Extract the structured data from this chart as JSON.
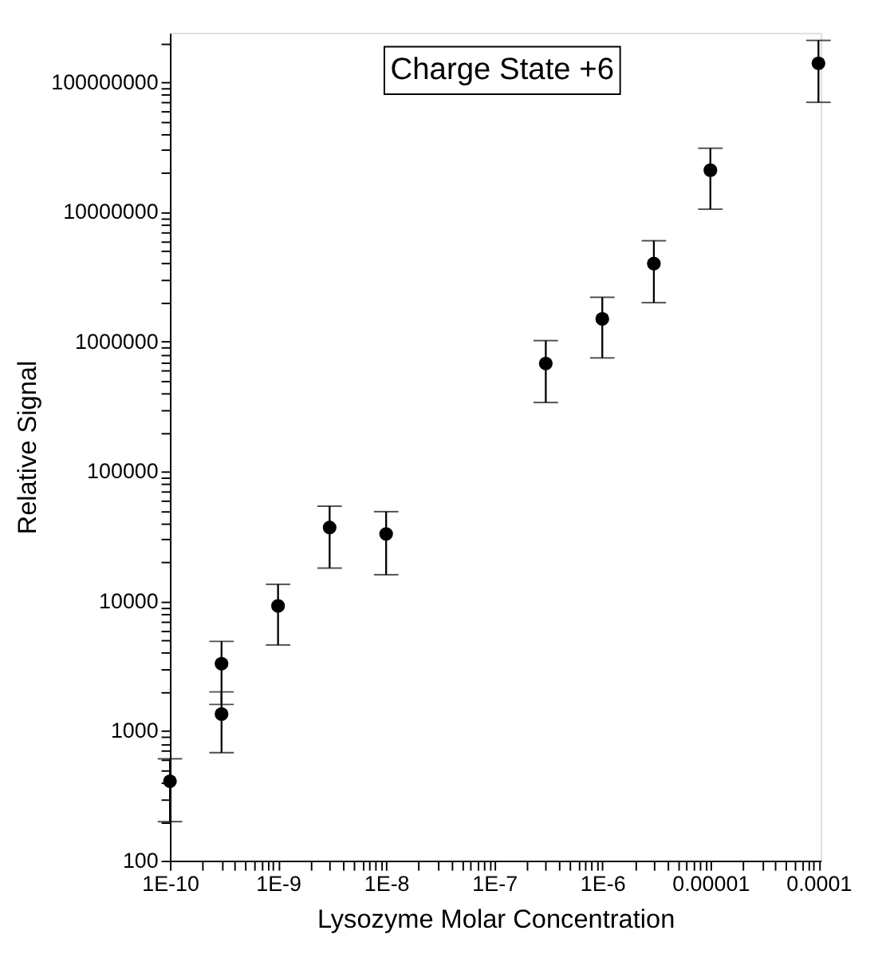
{
  "chart_data": {
    "type": "scatter",
    "xlabel": "Lysozyme Molar Concentration",
    "ylabel": "Relative Signal",
    "annotations": [
      "Charge State +6"
    ],
    "x": [
      1e-10,
      3e-10,
      3e-10,
      1e-09,
      3e-09,
      1e-08,
      3e-07,
      1e-06,
      3e-06,
      1e-05,
      0.0001
    ],
    "values": [
      410,
      3300,
      1350,
      9200,
      37000,
      33000,
      680000,
      1500000,
      4000000,
      21000000,
      140000000
    ],
    "errors": [
      [
        200,
        610
      ],
      [
        1600,
        4900
      ],
      [
        680,
        2000
      ],
      [
        4600,
        13500
      ],
      [
        18000,
        54000
      ],
      [
        16000,
        49000
      ],
      [
        340000,
        1020000
      ],
      [
        750000,
        2200000
      ],
      [
        2000000,
        6000000
      ],
      [
        10500000,
        31000000
      ],
      [
        70000000,
        210000000
      ]
    ],
    "color": "#000000",
    "marker": "circle",
    "log": "xy",
    "grid": false,
    "legend": false,
    "xlim": [
      1e-10,
      0.000105
    ],
    "ylim": [
      100,
      240000000.0
    ],
    "xticks": [
      {
        "value": 1e-10,
        "label": "1E-10"
      },
      {
        "value": 2e-10,
        "label": null
      },
      {
        "value": 3e-10,
        "label": null
      },
      {
        "value": 4e-10,
        "label": null
      },
      {
        "value": 5e-10,
        "label": null
      },
      {
        "value": 6e-10,
        "label": null
      },
      {
        "value": 7e-10,
        "label": null
      },
      {
        "value": 8e-10,
        "label": null
      },
      {
        "value": 9e-10,
        "label": null
      },
      {
        "value": 1e-09,
        "label": "1E-9"
      },
      {
        "value": 2e-09,
        "label": null
      },
      {
        "value": 3e-09,
        "label": null
      },
      {
        "value": 4e-09,
        "label": null
      },
      {
        "value": 5e-09,
        "label": null
      },
      {
        "value": 6e-09,
        "label": null
      },
      {
        "value": 7e-09,
        "label": null
      },
      {
        "value": 8e-09,
        "label": null
      },
      {
        "value": 9e-09,
        "label": null
      },
      {
        "value": 1e-08,
        "label": "1E-8"
      },
      {
        "value": 2e-08,
        "label": null
      },
      {
        "value": 3e-08,
        "label": null
      },
      {
        "value": 4e-08,
        "label": null
      },
      {
        "value": 5e-08,
        "label": null
      },
      {
        "value": 6e-08,
        "label": null
      },
      {
        "value": 7e-08,
        "label": null
      },
      {
        "value": 8e-08,
        "label": null
      },
      {
        "value": 9e-08,
        "label": null
      },
      {
        "value": 1e-07,
        "label": "1E-7"
      },
      {
        "value": 2e-07,
        "label": null
      },
      {
        "value": 3e-07,
        "label": null
      },
      {
        "value": 4e-07,
        "label": null
      },
      {
        "value": 5e-07,
        "label": null
      },
      {
        "value": 6e-07,
        "label": null
      },
      {
        "value": 7e-07,
        "label": null
      },
      {
        "value": 8e-07,
        "label": null
      },
      {
        "value": 9e-07,
        "label": null
      },
      {
        "value": 1e-06,
        "label": "1E-6"
      },
      {
        "value": 2e-06,
        "label": null
      },
      {
        "value": 3e-06,
        "label": null
      },
      {
        "value": 4e-06,
        "label": null
      },
      {
        "value": 5e-06,
        "label": null
      },
      {
        "value": 6e-06,
        "label": null
      },
      {
        "value": 7e-06,
        "label": null
      },
      {
        "value": 8e-06,
        "label": null
      },
      {
        "value": 9e-06,
        "label": null
      },
      {
        "value": 1e-05,
        "label": "0.00001"
      },
      {
        "value": 2e-05,
        "label": null
      },
      {
        "value": 3e-05,
        "label": null
      },
      {
        "value": 4e-05,
        "label": null
      },
      {
        "value": 5e-05,
        "label": null
      },
      {
        "value": 6e-05,
        "label": null
      },
      {
        "value": 7e-05,
        "label": null
      },
      {
        "value": 8e-05,
        "label": null
      },
      {
        "value": 9e-05,
        "label": null
      },
      {
        "value": 0.0001,
        "label": "0.0001"
      }
    ],
    "yticks": [
      100,
      {
        "value": 200,
        "label": null
      },
      {
        "value": 300,
        "label": null
      },
      {
        "value": 400,
        "label": null
      },
      {
        "value": 500,
        "label": null
      },
      {
        "value": 600,
        "label": null
      },
      {
        "value": 700,
        "label": null
      },
      {
        "value": 800,
        "label": null
      },
      {
        "value": 900,
        "label": null
      },
      1000,
      {
        "value": 2000,
        "label": null
      },
      {
        "value": 3000,
        "label": null
      },
      {
        "value": 4000,
        "label": null
      },
      {
        "value": 5000,
        "label": null
      },
      {
        "value": 6000,
        "label": null
      },
      {
        "value": 7000,
        "label": null
      },
      {
        "value": 8000,
        "label": null
      },
      {
        "value": 9000,
        "label": null
      },
      10000,
      {
        "value": 20000,
        "label": null
      },
      {
        "value": 30000,
        "label": null
      },
      {
        "value": 40000,
        "label": null
      },
      {
        "value": 50000,
        "label": null
      },
      {
        "value": 60000,
        "label": null
      },
      {
        "value": 70000,
        "label": null
      },
      {
        "value": 80000,
        "label": null
      },
      {
        "value": 90000,
        "label": null
      },
      100000,
      {
        "value": 200000,
        "label": null
      },
      {
        "value": 300000,
        "label": null
      },
      {
        "value": 400000,
        "label": null
      },
      {
        "value": 500000,
        "label": null
      },
      {
        "value": 600000,
        "label": null
      },
      {
        "value": 700000,
        "label": null
      },
      {
        "value": 800000,
        "label": null
      },
      {
        "value": 900000,
        "label": null
      },
      1000000,
      {
        "value": 2000000,
        "label": null
      },
      {
        "value": 3000000,
        "label": null
      },
      {
        "value": 4000000,
        "label": null
      },
      {
        "value": 5000000,
        "label": null
      },
      {
        "value": 6000000,
        "label": null
      },
      {
        "value": 7000000,
        "label": null
      },
      {
        "value": 8000000,
        "label": null
      },
      {
        "value": 9000000,
        "label": null
      },
      10000000,
      {
        "value": 20000000,
        "label": null
      },
      {
        "value": 30000000,
        "label": null
      },
      {
        "value": 40000000,
        "label": null
      },
      {
        "value": 50000000,
        "label": null
      },
      {
        "value": 60000000,
        "label": null
      },
      {
        "value": 70000000,
        "label": null
      },
      {
        "value": 80000000,
        "label": null
      },
      {
        "value": 90000000,
        "label": null
      },
      100000000,
      {
        "value": 200000000,
        "label": null
      }
    ]
  }
}
